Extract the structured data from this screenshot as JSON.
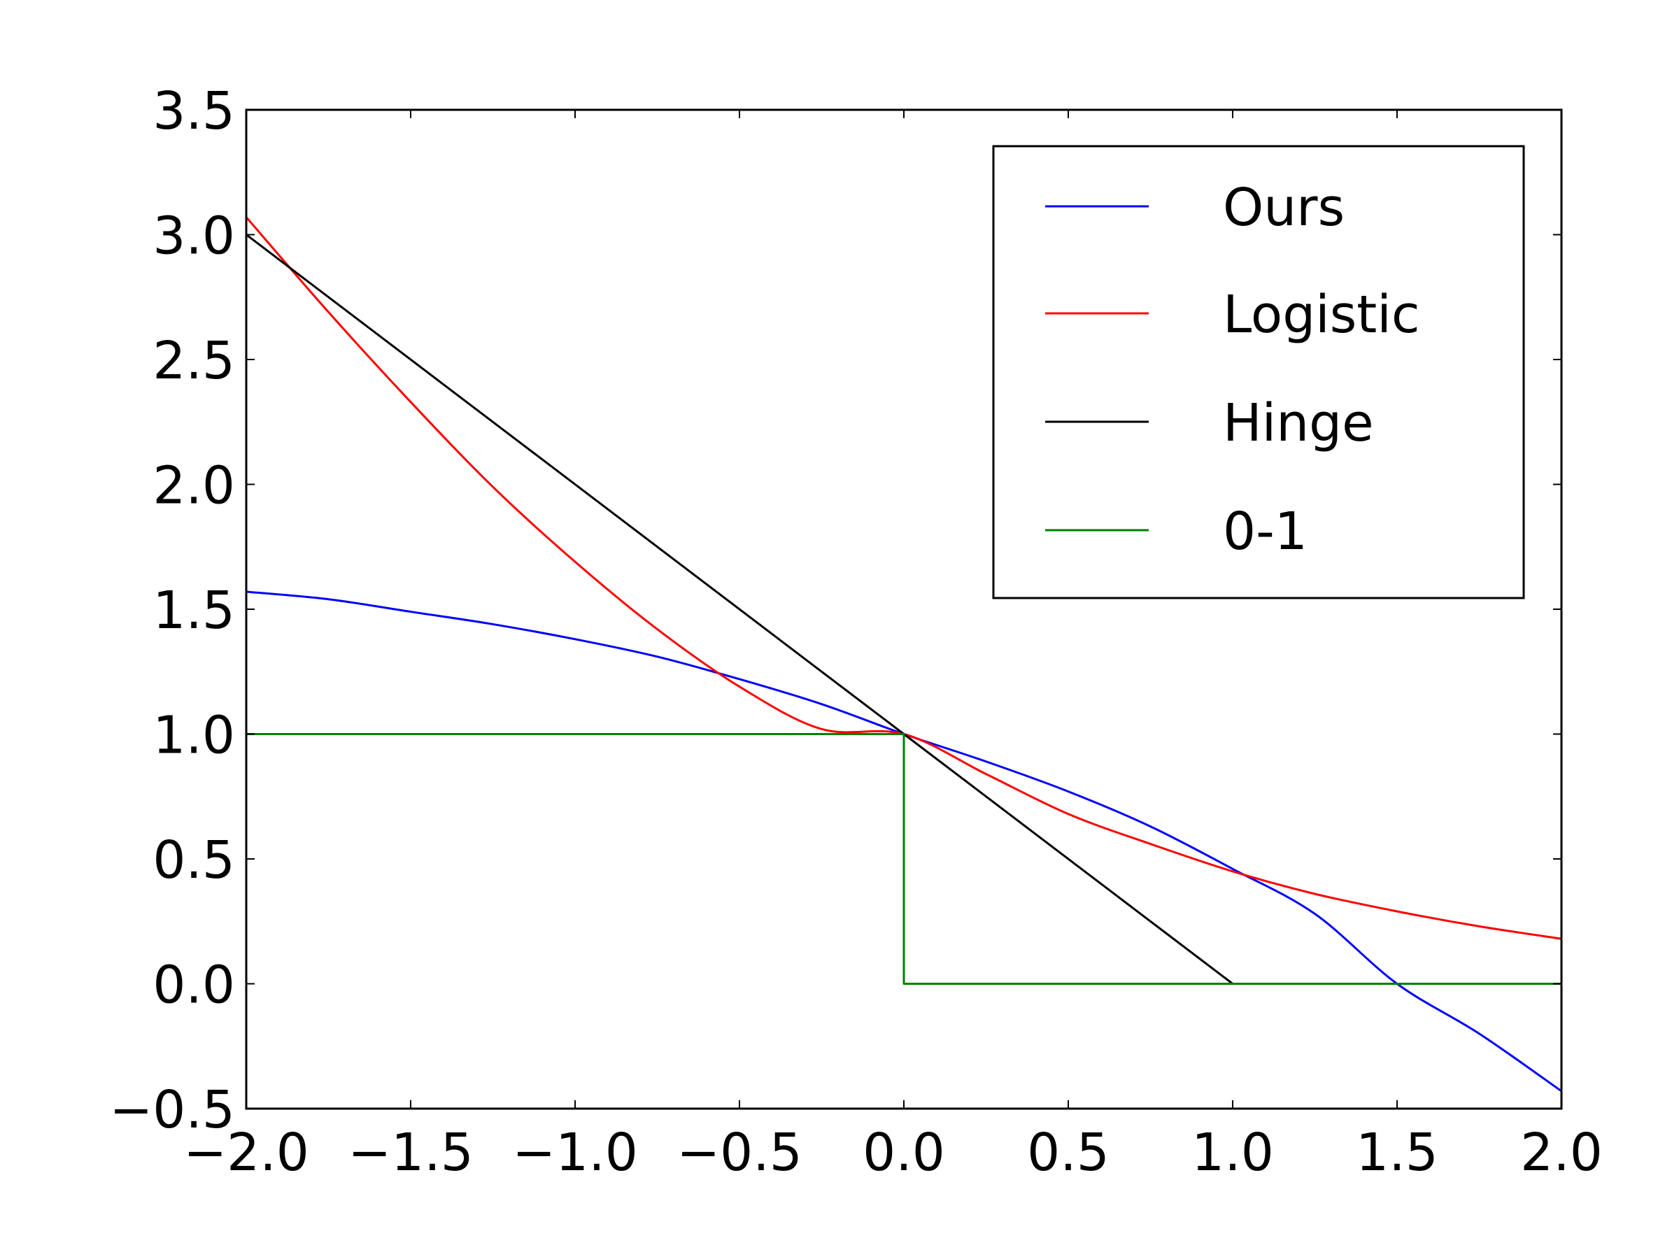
{
  "chart_data": {
    "type": "line",
    "title": "",
    "xlabel": "",
    "ylabel": "",
    "xlim": [
      -2.0,
      2.0
    ],
    "ylim": [
      -0.5,
      3.5
    ],
    "xticks": [
      "−2.0",
      "−1.5",
      "−1.0",
      "−0.5",
      "0.0",
      "0.5",
      "1.0",
      "1.5",
      "2.0"
    ],
    "yticks": [
      "−0.5",
      "0.0",
      "0.5",
      "1.0",
      "1.5",
      "2.0",
      "2.5",
      "3.0",
      "3.5"
    ],
    "grid": false,
    "legend_position": "top-right",
    "series": [
      {
        "name": "Ours",
        "color": "#0000ff",
        "x": [
          -2.0,
          -1.75,
          -1.5,
          -1.25,
          -1.0,
          -0.75,
          -0.5,
          -0.25,
          0.0,
          0.25,
          0.5,
          0.75,
          1.0,
          1.25,
          1.5,
          1.75,
          2.0
        ],
        "y": [
          1.57,
          1.54,
          1.49,
          1.44,
          1.38,
          1.31,
          1.22,
          1.12,
          1.0,
          0.89,
          0.77,
          0.63,
          0.46,
          0.28,
          0.0,
          -0.2,
          -0.43
        ]
      },
      {
        "name": "Logistic",
        "color": "#ff0000",
        "x": [
          -2.0,
          -1.75,
          -1.5,
          -1.25,
          -1.0,
          -0.75,
          -0.5,
          -0.25,
          0.0,
          0.25,
          0.5,
          0.75,
          1.0,
          1.25,
          1.5,
          1.75,
          2.0
        ],
        "y": [
          3.07,
          2.69,
          2.33,
          1.99,
          1.69,
          1.42,
          1.19,
          1.02,
          1.0,
          0.84,
          0.68,
          0.56,
          0.45,
          0.36,
          0.29,
          0.23,
          0.18
        ]
      },
      {
        "name": "Hinge",
        "color": "#000000",
        "x": [
          -2.0,
          0.0,
          1.0,
          2.0
        ],
        "y": [
          3.0,
          1.0,
          0.0,
          0.0
        ]
      },
      {
        "name": "0-1",
        "color": "#008000",
        "x": [
          -2.0,
          0.0,
          0.0,
          2.0
        ],
        "y": [
          1.0,
          1.0,
          0.0,
          0.0
        ]
      }
    ]
  }
}
